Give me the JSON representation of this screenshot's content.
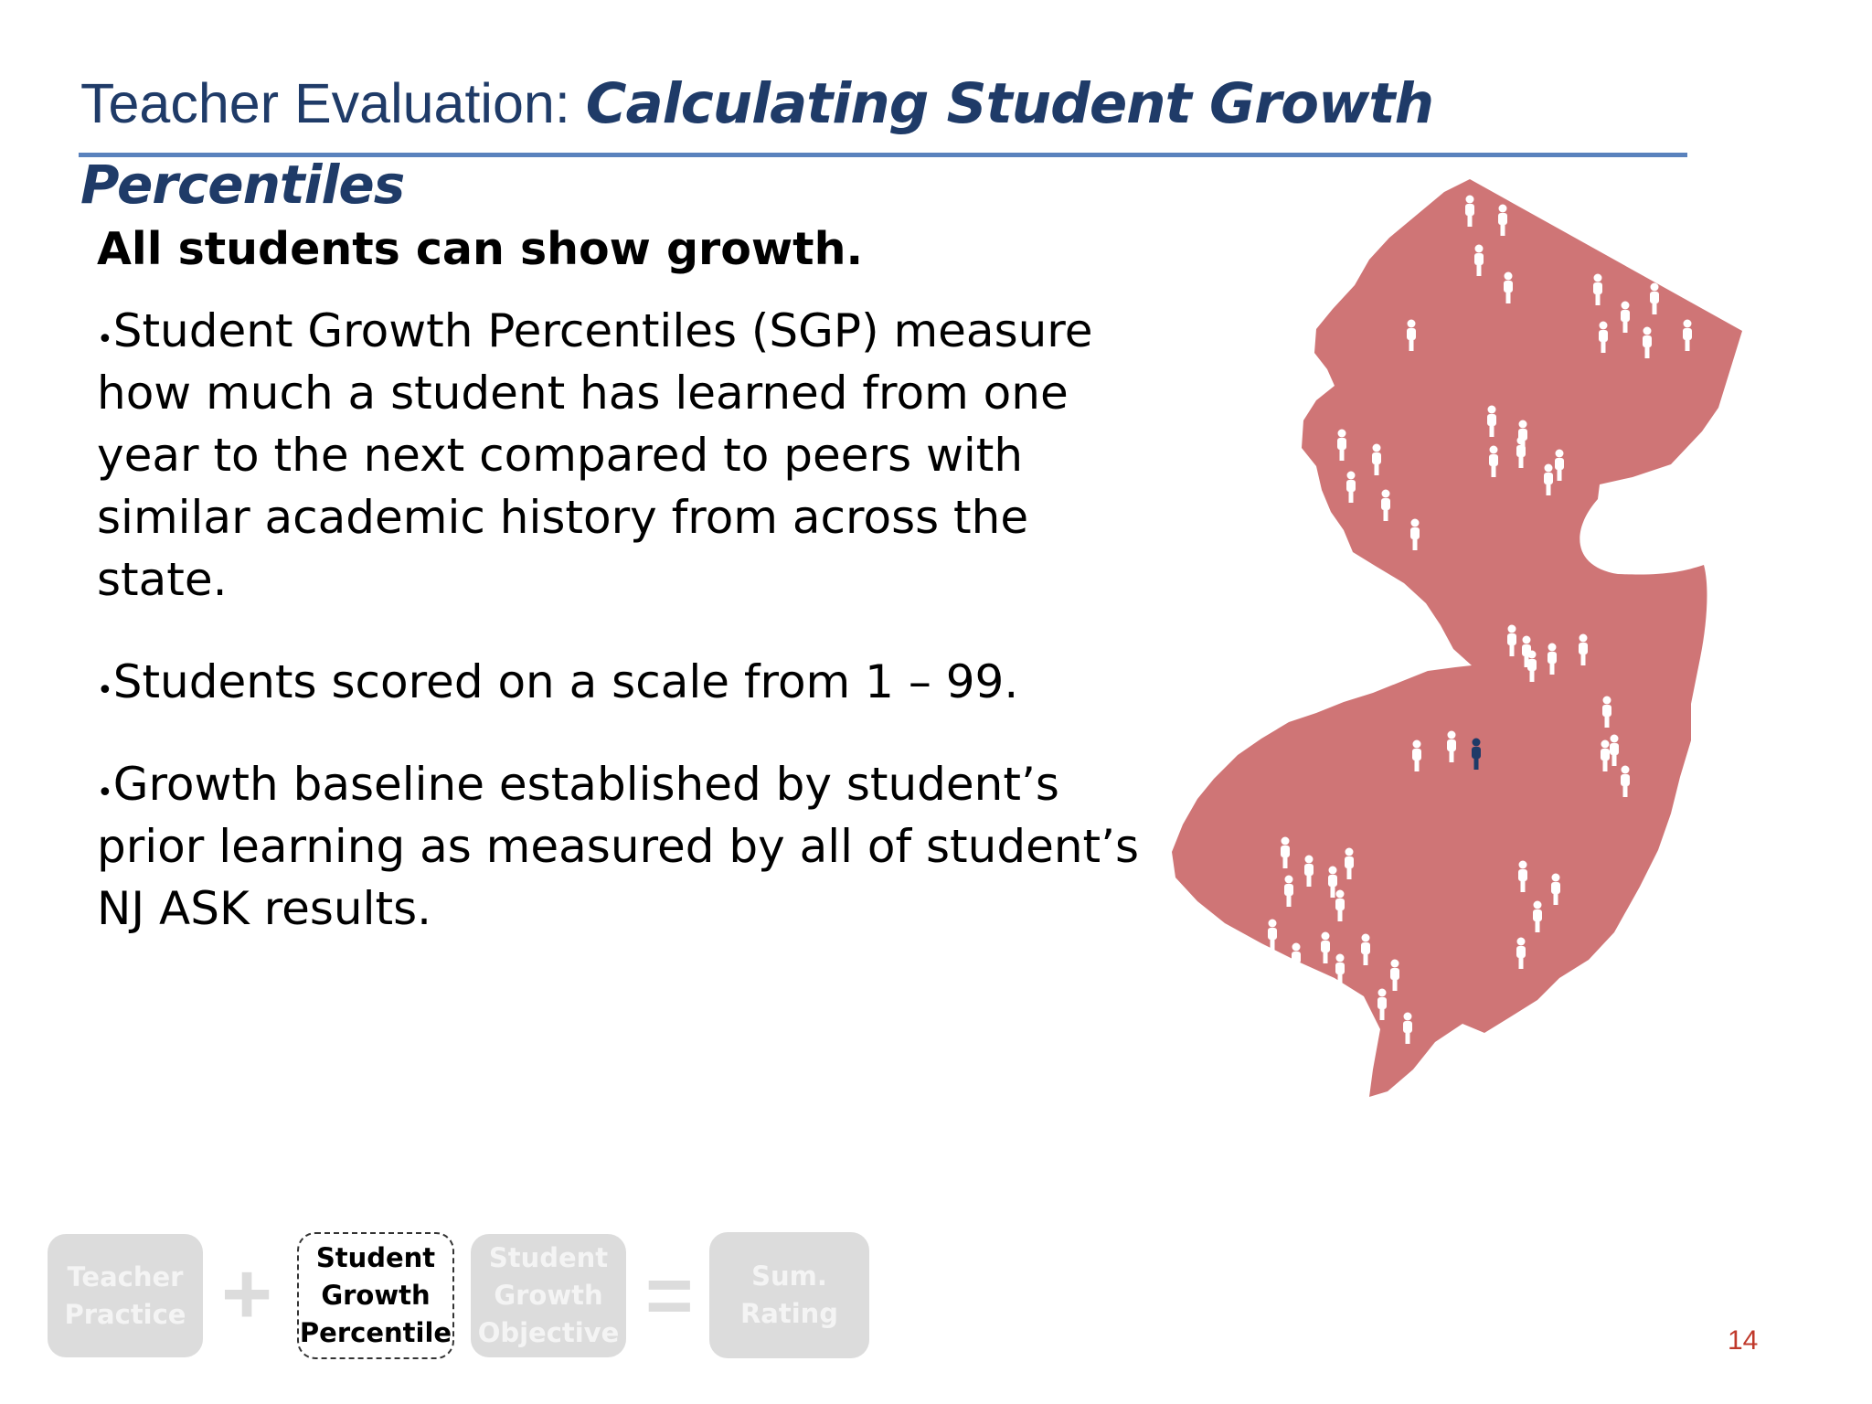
{
  "title": {
    "prefix": "Teacher Evaluation: ",
    "emphasis_line1": "Calculating Student Growth",
    "emphasis_line2": "Percentiles"
  },
  "heading": "All students can show growth.",
  "bullets": [
    "Student Growth Percentiles (SGP) measure how much a student has learned from one year to the next compared to peers with similar academic history from across the state.",
    "Students scored on a scale from 1 – 99.",
    "Growth baseline established by student’s prior learning as measured by all of student’s NJ ASK results."
  ],
  "bullet_symbol": "•",
  "flow": {
    "teacher_practice": [
      "Teacher",
      "Practice"
    ],
    "plus": "+",
    "sgp": [
      "Student",
      "Growth",
      "Percentile"
    ],
    "sgo": [
      "Student",
      "Growth",
      "Objective"
    ],
    "equals": "=",
    "sum_rating": [
      "Sum.",
      "Rating"
    ]
  },
  "page_number": "14",
  "colors": {
    "title": "#1f3b68",
    "rule": "#5a82bd",
    "map_fill": "#cf7576",
    "figure_default": "#ffffff",
    "figure_highlight": "#1f3b68",
    "inactive_box": "#dcdcdc",
    "page_number": "#c0392b"
  },
  "map": {
    "name": "New Jersey",
    "figure_icon": "person-icon"
  }
}
